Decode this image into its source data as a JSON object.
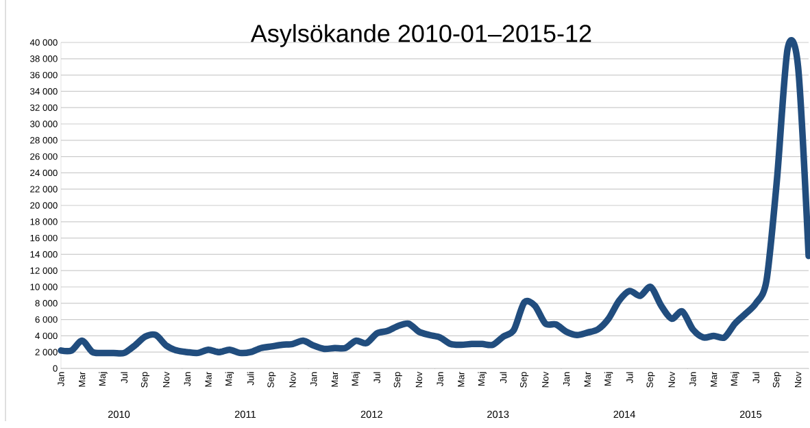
{
  "chart_data": {
    "type": "line",
    "title": "Asylsökande 2010-01–2015-12",
    "categories": [
      "Jan",
      null,
      "Mar",
      null,
      "Maj",
      null,
      "Jul",
      null,
      "Sep",
      null,
      "Nov",
      null,
      "Jan",
      null,
      "Mar",
      null,
      "Maj",
      null,
      "Juli",
      null,
      "Sep",
      null,
      "Nov",
      null,
      "Jan",
      null,
      "Mar",
      null,
      "Maj",
      null,
      "Jul",
      null,
      "Sep",
      null,
      "Nov",
      null,
      "Jan",
      null,
      "Mar",
      null,
      "Maj",
      null,
      "Jul",
      null,
      "Sep",
      null,
      "Nov",
      null,
      "Jan",
      null,
      "Mar",
      null,
      "Maj",
      null,
      "Jul",
      null,
      "Sep",
      null,
      "Nov",
      null,
      "Jan",
      null,
      "Mar",
      null,
      "Maj",
      null,
      "Jul",
      null,
      "Sep",
      null,
      "Nov",
      null
    ],
    "series": [
      {
        "color": "#214d7e",
        "values": [
          2200,
          2200,
          3400,
          2000,
          1900,
          1900,
          1900,
          2800,
          3900,
          4100,
          2800,
          2200,
          2000,
          1900,
          2300,
          2000,
          2300,
          1900,
          2000,
          2500,
          2700,
          2900,
          3000,
          3400,
          2800,
          2400,
          2500,
          2500,
          3400,
          3100,
          4300,
          4600,
          5200,
          5500,
          4500,
          4100,
          3800,
          3000,
          2900,
          3000,
          3000,
          2900,
          3900,
          4700,
          8100,
          7700,
          5500,
          5400,
          4500,
          4100,
          4400,
          4800,
          6100,
          8300,
          9500,
          8900,
          10000,
          7700,
          6100,
          7000,
          4800,
          3800,
          4000,
          3800,
          5500,
          6700,
          8000,
          10800,
          23300,
          39200,
          37000,
          13800
        ]
      }
    ],
    "ylim": [
      0,
      40000
    ],
    "yticks": [
      {
        "value": 0,
        "label": "0"
      },
      {
        "value": 2000,
        "label": "2 000"
      },
      {
        "value": 4000,
        "label": "4 000"
      },
      {
        "value": 6000,
        "label": "6 000"
      },
      {
        "value": 8000,
        "label": "8 000"
      },
      {
        "value": 10000,
        "label": "10 000"
      },
      {
        "value": 12000,
        "label": "12 000"
      },
      {
        "value": 14000,
        "label": "14 000"
      },
      {
        "value": 16000,
        "label": "16 000"
      },
      {
        "value": 18000,
        "label": "18 000"
      },
      {
        "value": 20000,
        "label": "20 000"
      },
      {
        "value": 22000,
        "label": "22 000"
      },
      {
        "value": 24000,
        "label": "24 000"
      },
      {
        "value": 26000,
        "label": "26 000"
      },
      {
        "value": 28000,
        "label": "28 000"
      },
      {
        "value": 30000,
        "label": "30 000"
      },
      {
        "value": 32000,
        "label": "32 000"
      },
      {
        "value": 34000,
        "label": "34 000"
      },
      {
        "value": 36000,
        "label": "36 000"
      },
      {
        "value": 38000,
        "label": "38 000"
      },
      {
        "value": 40000,
        "label": "40 000"
      }
    ],
    "grid": "y",
    "marker": "none",
    "line_style": "solid",
    "annotations": [
      "2010",
      "2011",
      "2012",
      "2013",
      "2014",
      "2015"
    ]
  }
}
